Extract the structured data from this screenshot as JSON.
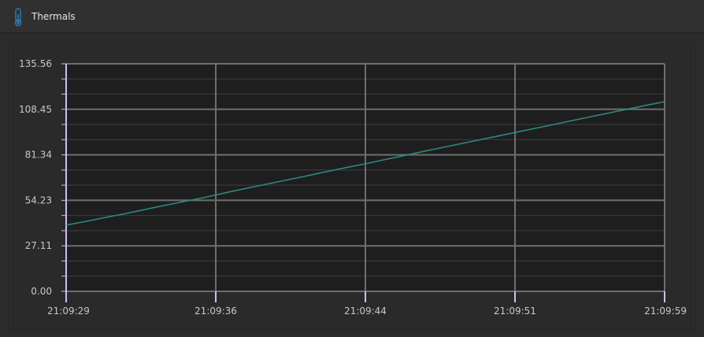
{
  "window": {
    "title": "Thermals",
    "icon": "thermometer-icon"
  },
  "colors": {
    "background": "#2b2b2b",
    "plot_background": "#1e1e1e",
    "grid": "#6e6e6e",
    "axis": "#c9c0f5",
    "series": "#2a8a82",
    "icon": "#2a7fb8"
  },
  "chart_data": {
    "type": "line",
    "title": "",
    "xlabel": "",
    "ylabel": "",
    "ylim": [
      0,
      135.56
    ],
    "y_ticks": [
      "0.00",
      "27.11",
      "54.23",
      "81.34",
      "108.45",
      "135.56"
    ],
    "x_ticks": [
      "21:09:29",
      "21:09:36",
      "21:09:44",
      "21:09:51",
      "21:09:59"
    ],
    "grid": true,
    "legend": "none",
    "series": [
      {
        "values": [
          39.5,
          41.5,
          43.8,
          45.9,
          48.2,
          50.6,
          52.8,
          55.0,
          57.4,
          59.9,
          62.2,
          64.5,
          66.8,
          69.1,
          71.5,
          73.8,
          76.0,
          78.4,
          80.7,
          83.1,
          85.4,
          87.7,
          90.0,
          92.3,
          94.6,
          96.9,
          99.2,
          101.6,
          103.9,
          106.2,
          108.5,
          110.8,
          113.0
        ]
      }
    ]
  }
}
